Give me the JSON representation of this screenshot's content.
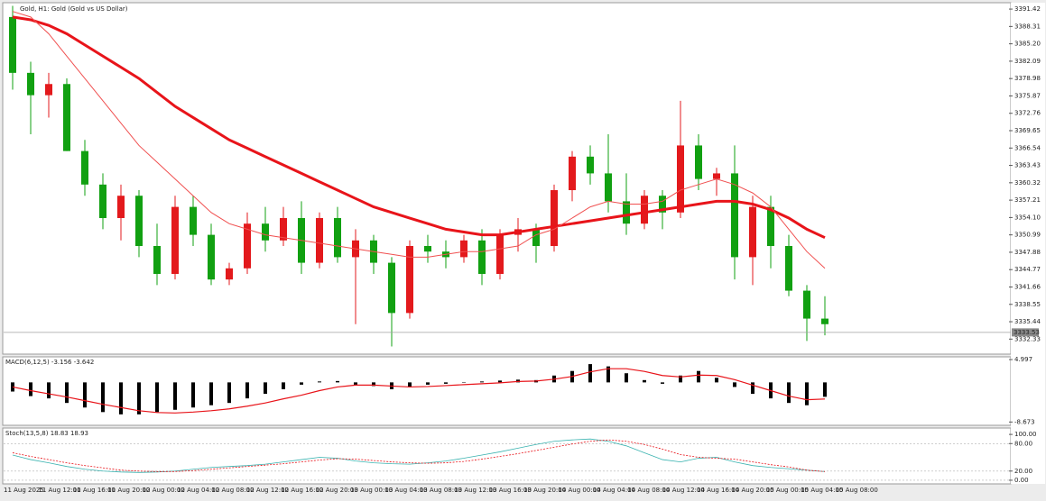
{
  "chart_data": [
    {
      "type": "candlestick",
      "title": "Gold, H1: Gold (Gold vs US Dollar)",
      "bull_color": "#e3191c",
      "bear_color": "#11a011",
      "open": [
        3390,
        3380,
        3376,
        3378,
        3366,
        3360,
        3354,
        3358,
        3349,
        3344,
        3356,
        3351,
        3343,
        3345,
        3353,
        3350,
        3354,
        3346,
        3354,
        3347,
        3350,
        3346,
        3337,
        3349,
        3348,
        3347,
        3350,
        3344,
        3351,
        3352,
        3349,
        3359,
        3365,
        3362,
        3357,
        3353,
        3358,
        3355,
        3367,
        3361,
        3362,
        3347,
        3356,
        3349,
        3341,
        3336
      ],
      "high": [
        3392,
        3382,
        3380,
        3379,
        3368,
        3362,
        3360,
        3359,
        3353,
        3358,
        3358,
        3353,
        3346,
        3355,
        3356,
        3356,
        3357,
        3355,
        3356,
        3352,
        3351,
        3347,
        3350,
        3351,
        3350,
        3351,
        3352,
        3352,
        3354,
        3353,
        3360,
        3366,
        3367,
        3369,
        3362,
        3359,
        3359,
        3375,
        3369,
        3363,
        3367,
        3358,
        3358,
        3351,
        3342,
        3340
      ],
      "low": [
        3377,
        3369,
        3372,
        3366,
        3358,
        3352,
        3350,
        3347,
        3342,
        3343,
        3349,
        3342,
        3342,
        3344,
        3348,
        3349,
        3344,
        3345,
        3346,
        3335,
        3344,
        3331,
        3336,
        3346,
        3345,
        3346,
        3342,
        3343,
        3348,
        3346,
        3348,
        3357,
        3360,
        3355,
        3351,
        3352,
        3352,
        3354,
        3359,
        3358,
        3343,
        3342,
        3345,
        3340,
        3332,
        3333
      ],
      "close": [
        3380,
        3376,
        3378,
        3366,
        3360,
        3354,
        3358,
        3349,
        3344,
        3356,
        3351,
        3343,
        3345,
        3353,
        3350,
        3354,
        3346,
        3354,
        3347,
        3350,
        3346,
        3337,
        3349,
        3348,
        3347,
        3350,
        3344,
        3351,
        3352,
        3349,
        3359,
        3365,
        3362,
        3357,
        3353,
        3358,
        3355,
        3367,
        3361,
        3362,
        3347,
        3356,
        3349,
        3341,
        3336,
        3335
      ],
      "lines": [
        {
          "color": "#e8141a",
          "width": 3,
          "values": [
            3390,
            3389.5,
            3388.5,
            3387,
            3385,
            3383,
            3381,
            3379,
            3376.5,
            3374,
            3372,
            3370,
            3368,
            3366.5,
            3365,
            3363.5,
            3362,
            3360.5,
            3359,
            3357.5,
            3356,
            3355,
            3354,
            3353,
            3352,
            3351.5,
            3351,
            3351,
            3351.5,
            3352,
            3352.5,
            3353,
            3353.5,
            3354,
            3354.5,
            3355,
            3355.5,
            3356,
            3356.5,
            3357,
            3357,
            3356.5,
            3355.5,
            3354,
            3352,
            3350.5
          ]
        },
        {
          "color": "#f05050",
          "width": 1,
          "values": [
            3391,
            3390,
            3387,
            3383,
            3379,
            3375,
            3371,
            3367,
            3364,
            3361,
            3358,
            3355,
            3353,
            3352,
            3351,
            3350.5,
            3350,
            3349.5,
            3349,
            3348.5,
            3348,
            3347.5,
            3347,
            3347,
            3347.5,
            3348,
            3348,
            3348.5,
            3349,
            3351,
            3352,
            3354,
            3356,
            3357,
            3356.5,
            3356.5,
            3357,
            3359,
            3360,
            3361,
            3360,
            3358.5,
            3356,
            3352,
            3348,
            3345
          ]
        }
      ],
      "current_price": 3333.53,
      "ylim": [
        3329.8,
        3392.4
      ],
      "yticks": [
        {
          "value": 3391.42,
          "label": "3391.42"
        },
        {
          "value": 3388.31,
          "label": "3388.31"
        },
        {
          "value": 3385.2,
          "label": "3385.20"
        },
        {
          "value": 3382.09,
          "label": "3382.09"
        },
        {
          "value": 3378.98,
          "label": "3378.98"
        },
        {
          "value": 3375.87,
          "label": "3375.87"
        },
        {
          "value": 3372.76,
          "label": "3372.76"
        },
        {
          "value": 3369.65,
          "label": "3369.65"
        },
        {
          "value": 3366.54,
          "label": "3366.54"
        },
        {
          "value": 3363.43,
          "label": "3363.43"
        },
        {
          "value": 3360.32,
          "label": "3360.32"
        },
        {
          "value": 3357.21,
          "label": "3357.21"
        },
        {
          "value": 3354.1,
          "label": "3354.10"
        },
        {
          "value": 3350.99,
          "label": "3350.99"
        },
        {
          "value": 3347.88,
          "label": "3347.88"
        },
        {
          "value": 3344.77,
          "label": "3344.77"
        },
        {
          "value": 3341.66,
          "label": "3341.66"
        },
        {
          "value": 3338.55,
          "label": "3338.55"
        },
        {
          "value": 3335.44,
          "label": "3335.44"
        },
        {
          "value": 3332.33,
          "label": "3332.33"
        }
      ],
      "xtick_labels": [
        "11 Aug 2025",
        "11 Aug 12:00",
        "11 Aug 16:00",
        "11 Aug 20:00",
        "12 Aug 00:00",
        "12 Aug 04:00",
        "12 Aug 08:00",
        "12 Aug 12:00",
        "12 Aug 16:00",
        "12 Aug 20:00",
        "13 Aug 00:00",
        "13 Aug 04:00",
        "13 Aug 08:00",
        "13 Aug 12:00",
        "13 Aug 16:00",
        "13 Aug 20:00",
        "14 Aug 00:00",
        "14 Aug 04:00",
        "14 Aug 08:00",
        "14 Aug 12:00",
        "14 Aug 16:00",
        "14 Aug 20:00",
        "15 Aug 00:00",
        "15 Aug 04:00",
        "15 Aug 08:00"
      ]
    },
    {
      "type": "macd",
      "title": "MACD(6,12,5) -3.156 -3.642",
      "bar_color": "#000000",
      "signal_color": "#e8141a",
      "histogram": [
        -2,
        -3,
        -3.5,
        -4.5,
        -5.5,
        -6.5,
        -7,
        -7,
        -6.5,
        -6,
        -5.5,
        -5,
        -4.5,
        -3.5,
        -2.5,
        -1.5,
        -0.5,
        0.2,
        0.3,
        -0.5,
        -0.8,
        -1.5,
        -1,
        -0.5,
        -0.3,
        0,
        0.2,
        0.4,
        0.6,
        0.5,
        1.5,
        2.5,
        4,
        3.5,
        2,
        0.5,
        -0.3,
        1.5,
        2.5,
        1,
        -1,
        -2.5,
        -3.5,
        -4.5,
        -5,
        -3.156
      ],
      "signal": [
        -1,
        -1.8,
        -2.5,
        -3.2,
        -4,
        -4.8,
        -5.5,
        -6.2,
        -6.6,
        -6.7,
        -6.5,
        -6.2,
        -5.8,
        -5.2,
        -4.5,
        -3.6,
        -2.8,
        -1.8,
        -1,
        -0.6,
        -0.6,
        -0.8,
        -1,
        -0.9,
        -0.7,
        -0.5,
        -0.3,
        -0.1,
        0.2,
        0.3,
        0.7,
        1.3,
        2.3,
        3,
        3,
        2.4,
        1.5,
        1.2,
        1.6,
        1.5,
        0.6,
        -0.6,
        -1.8,
        -3,
        -3.8,
        -3.642
      ],
      "ylim": [
        -9.2,
        5.4
      ],
      "yticks": [
        4.997,
        -8.673
      ]
    },
    {
      "type": "stochastic",
      "title": "Stoch(13,5,8) 18.83 18.93",
      "lines": [
        {
          "color": "#3ab3b0",
          "dashed": false,
          "values": [
            55,
            45,
            38,
            30,
            24,
            20,
            18,
            17,
            18,
            20,
            24,
            28,
            30,
            32,
            35,
            40,
            45,
            50,
            48,
            42,
            38,
            36,
            35,
            38,
            42,
            48,
            55,
            62,
            70,
            78,
            85,
            88,
            90,
            85,
            75,
            60,
            45,
            40,
            48,
            50,
            40,
            32,
            28,
            25,
            22,
            18.83
          ]
        },
        {
          "color": "#e8141a",
          "dashed": true,
          "values": [
            60,
            52,
            45,
            38,
            32,
            27,
            22,
            20,
            19,
            19,
            21,
            24,
            27,
            30,
            33,
            36,
            40,
            44,
            47,
            46,
            43,
            40,
            38,
            37,
            38,
            41,
            46,
            52,
            58,
            65,
            72,
            79,
            85,
            88,
            85,
            78,
            68,
            56,
            50,
            48,
            46,
            40,
            34,
            29,
            22,
            18.93
          ]
        }
      ],
      "ylim": [
        -6,
        112
      ],
      "yticks": [
        {
          "value": 100,
          "label": "100.00"
        },
        {
          "value": 80,
          "label": "80.00"
        },
        {
          "value": 20,
          "label": "20.00"
        },
        {
          "value": 0,
          "label": "0.00"
        }
      ]
    }
  ]
}
